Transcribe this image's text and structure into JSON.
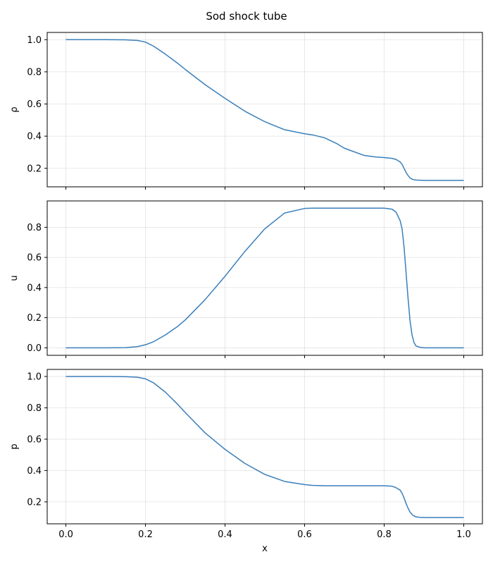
{
  "chart_data": {
    "title": "Sod shock tube",
    "type": "line",
    "line_color": "#3a7fba",
    "grid": true,
    "sharex": true,
    "x": [
      0.0,
      0.05,
      0.1,
      0.15,
      0.18,
      0.2,
      0.22,
      0.25,
      0.28,
      0.3,
      0.35,
      0.4,
      0.45,
      0.5,
      0.55,
      0.6,
      0.62,
      0.65,
      0.68,
      0.7,
      0.75,
      0.78,
      0.8,
      0.82,
      0.83,
      0.84,
      0.845,
      0.85,
      0.855,
      0.86,
      0.865,
      0.87,
      0.875,
      0.88,
      0.89,
      0.9,
      0.95,
      1.0
    ],
    "xlabel": "x",
    "xlim": [
      -0.047,
      1.047
    ],
    "xticks": [
      "0.0",
      "0.2",
      "0.4",
      "0.6",
      "0.8",
      "1.0"
    ],
    "panels": [
      {
        "ylabel": "ρ",
        "ylim": [
          0.085,
          1.045
        ],
        "yticks": [
          "0.2",
          "0.4",
          "0.6",
          "0.8",
          "1.0"
        ],
        "values": [
          1.0,
          1.0,
          1.0,
          0.999,
          0.995,
          0.985,
          0.96,
          0.91,
          0.855,
          0.815,
          0.72,
          0.635,
          0.555,
          0.49,
          0.44,
          0.415,
          0.408,
          0.39,
          0.355,
          0.325,
          0.28,
          0.27,
          0.267,
          0.262,
          0.255,
          0.24,
          0.225,
          0.2,
          0.175,
          0.155,
          0.14,
          0.133,
          0.129,
          0.127,
          0.126,
          0.125,
          0.125,
          0.125
        ]
      },
      {
        "ylabel": "u",
        "ylim": [
          -0.05,
          0.975
        ],
        "yticks": [
          "0.0",
          "0.2",
          "0.4",
          "0.6",
          "0.8"
        ],
        "values": [
          0.0,
          0.0,
          0.0,
          0.001,
          0.008,
          0.02,
          0.04,
          0.085,
          0.14,
          0.185,
          0.32,
          0.475,
          0.64,
          0.79,
          0.895,
          0.925,
          0.927,
          0.927,
          0.927,
          0.927,
          0.927,
          0.927,
          0.927,
          0.92,
          0.9,
          0.845,
          0.79,
          0.67,
          0.5,
          0.33,
          0.18,
          0.085,
          0.035,
          0.012,
          0.003,
          0.0,
          0.0,
          0.0
        ]
      },
      {
        "ylabel": "p",
        "ylim": [
          0.06,
          1.045
        ],
        "yticks": [
          "0.2",
          "0.4",
          "0.6",
          "0.8",
          "1.0"
        ],
        "values": [
          1.0,
          1.0,
          1.0,
          0.999,
          0.995,
          0.985,
          0.96,
          0.9,
          0.825,
          0.77,
          0.64,
          0.535,
          0.445,
          0.375,
          0.33,
          0.31,
          0.305,
          0.303,
          0.303,
          0.303,
          0.303,
          0.303,
          0.303,
          0.3,
          0.29,
          0.275,
          0.255,
          0.225,
          0.19,
          0.16,
          0.135,
          0.12,
          0.11,
          0.105,
          0.101,
          0.1,
          0.1,
          0.1
        ]
      }
    ]
  }
}
